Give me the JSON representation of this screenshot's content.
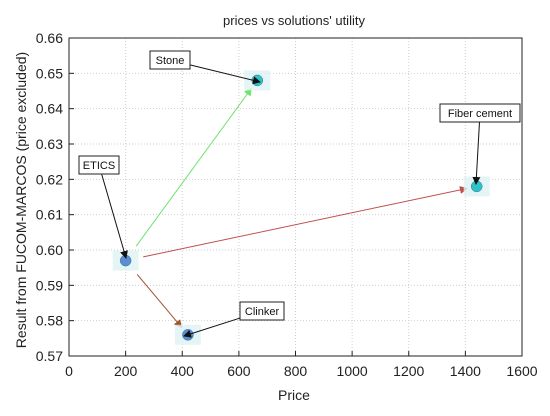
{
  "chart_data": {
    "type": "scatter",
    "title": "prices vs solutions' utility",
    "xlabel": "Price",
    "ylabel": "Result from FUCOM-MARCOS (price excluded)",
    "xlim": [
      0,
      1600
    ],
    "ylim": [
      0.57,
      0.66
    ],
    "xticks": [
      0,
      200,
      400,
      600,
      800,
      1000,
      1200,
      1400,
      1600
    ],
    "yticks": [
      0.57,
      0.58,
      0.59,
      0.6,
      0.61,
      0.62,
      0.63,
      0.64,
      0.65,
      0.66
    ],
    "grid": true,
    "points": [
      {
        "label": "ETICS",
        "x": 200,
        "y": 0.597,
        "color": "#5b8fd1"
      },
      {
        "label": "Stone",
        "x": 665,
        "y": 0.648,
        "color": "#2ec4c4"
      },
      {
        "label": "Fiber cement",
        "x": 1440,
        "y": 0.618,
        "color": "#2ec4c4"
      },
      {
        "label": "Clinker",
        "x": 420,
        "y": 0.576,
        "color": "#5b8fd1"
      }
    ],
    "arrows": [
      {
        "from": "ETICS",
        "to": "Stone",
        "color": "#6fe36f"
      },
      {
        "from": "ETICS",
        "to": "Fiber cement",
        "color": "#c0504d"
      },
      {
        "from": "ETICS",
        "to": "Clinker",
        "color": "#a0522d"
      }
    ],
    "annotations": [
      {
        "text": "Stone"
      },
      {
        "text": "Fiber cement"
      },
      {
        "text": "ETICS"
      },
      {
        "text": "Clinker"
      }
    ]
  }
}
